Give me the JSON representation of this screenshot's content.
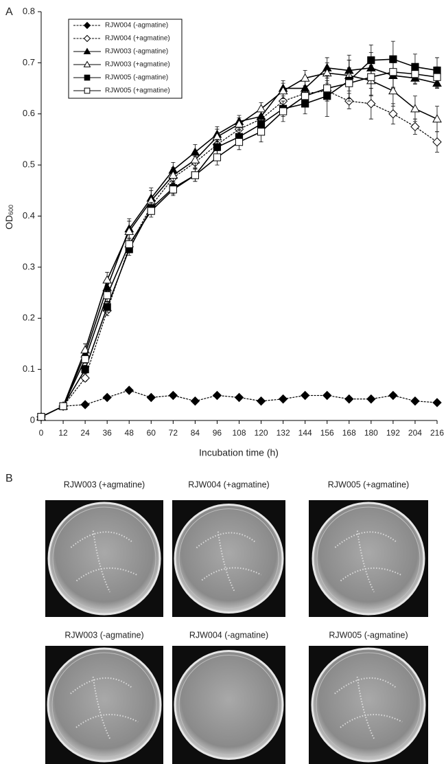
{
  "panel_labels": [
    "A",
    "B"
  ],
  "chart_data": {
    "type": "line",
    "xlabel": "Incubation time (h)",
    "ylabel": {
      "text": "OD",
      "subscript": "600"
    },
    "x": [
      0,
      12,
      24,
      36,
      48,
      60,
      72,
      84,
      96,
      108,
      120,
      132,
      144,
      156,
      168,
      180,
      192,
      204,
      216
    ],
    "xlim": [
      0,
      216
    ],
    "xticks": [
      0,
      12,
      24,
      36,
      48,
      60,
      72,
      84,
      96,
      108,
      120,
      132,
      144,
      156,
      168,
      180,
      192,
      204,
      216
    ],
    "ylim": [
      0,
      0.8
    ],
    "yticks": [
      0,
      0.1,
      0.2,
      0.3,
      0.4,
      0.5,
      0.6,
      0.7,
      0.8
    ],
    "series": [
      {
        "name": "RJW004 (-agmatine)",
        "color": "#000000",
        "marker": "diamond",
        "filled": true,
        "dashed": true,
        "values": [
          0.007,
          0.028,
          0.031,
          0.045,
          0.059,
          0.045,
          0.049,
          0.038,
          0.049,
          0.045,
          0.038,
          0.042,
          0.049,
          0.049,
          0.042,
          0.042,
          0.049,
          0.038,
          0.035
        ],
        "errors": [
          0.002,
          0.002,
          0.004,
          0.004,
          0.004,
          0.004,
          0.004,
          0.004,
          0.004,
          0.004,
          0.004,
          0.004,
          0.004,
          0.004,
          0.004,
          0.004,
          0.004,
          0.004,
          0.004
        ]
      },
      {
        "name": "RJW004 (+agmatine)",
        "color": "#000000",
        "marker": "diamond",
        "filled": false,
        "dashed": true,
        "values": [
          0.007,
          0.028,
          0.083,
          0.215,
          0.34,
          0.42,
          0.475,
          0.505,
          0.54,
          0.57,
          0.59,
          0.625,
          0.64,
          0.645,
          0.625,
          0.62,
          0.6,
          0.575,
          0.545
        ],
        "errors": [
          0.002,
          0.002,
          0.006,
          0.01,
          0.012,
          0.012,
          0.012,
          0.012,
          0.012,
          0.012,
          0.015,
          0.015,
          0.015,
          0.02,
          0.015,
          0.03,
          0.02,
          0.015,
          0.02
        ]
      },
      {
        "name": "RJW003 (-agmatine)",
        "color": "#000000",
        "marker": "triangle",
        "filled": true,
        "dashed": false,
        "values": [
          0.007,
          0.028,
          0.13,
          0.26,
          0.375,
          0.435,
          0.49,
          0.525,
          0.56,
          0.585,
          0.595,
          0.65,
          0.65,
          0.69,
          0.685,
          0.69,
          0.675,
          0.67,
          0.66
        ],
        "errors": [
          0.002,
          0.002,
          0.01,
          0.015,
          0.02,
          0.02,
          0.015,
          0.015,
          0.015,
          0.012,
          0.012,
          0.015,
          0.015,
          0.02,
          0.03,
          0.03,
          0.025,
          0.01,
          0.01
        ]
      },
      {
        "name": "RJW003 (+agmatine)",
        "color": "#000000",
        "marker": "triangle",
        "filled": false,
        "dashed": false,
        "values": [
          0.007,
          0.028,
          0.138,
          0.275,
          0.37,
          0.43,
          0.48,
          0.51,
          0.555,
          0.58,
          0.61,
          0.645,
          0.67,
          0.68,
          0.675,
          0.665,
          0.645,
          0.61,
          0.59
        ],
        "errors": [
          0.002,
          0.002,
          0.012,
          0.015,
          0.02,
          0.02,
          0.015,
          0.015,
          0.015,
          0.012,
          0.012,
          0.015,
          0.015,
          0.02,
          0.03,
          0.03,
          0.03,
          0.025,
          0.025
        ]
      },
      {
        "name": "RJW005 (-agmatine)",
        "color": "#000000",
        "marker": "square",
        "filled": true,
        "dashed": false,
        "values": [
          0.007,
          0.028,
          0.1,
          0.222,
          0.335,
          0.415,
          0.455,
          0.48,
          0.535,
          0.555,
          0.58,
          0.61,
          0.62,
          0.635,
          0.665,
          0.705,
          0.707,
          0.692,
          0.685
        ],
        "errors": [
          0.002,
          0.002,
          0.008,
          0.01,
          0.012,
          0.012,
          0.012,
          0.012,
          0.015,
          0.015,
          0.015,
          0.015,
          0.02,
          0.04,
          0.04,
          0.03,
          0.035,
          0.025,
          0.025
        ]
      },
      {
        "name": "RJW005 (+agmatine)",
        "color": "#000000",
        "marker": "square",
        "filled": false,
        "dashed": false,
        "values": [
          0.007,
          0.028,
          0.12,
          0.245,
          0.345,
          0.41,
          0.452,
          0.48,
          0.515,
          0.545,
          0.565,
          0.605,
          0.635,
          0.65,
          0.66,
          0.672,
          0.682,
          0.678,
          0.672
        ],
        "errors": [
          0.002,
          0.002,
          0.008,
          0.012,
          0.012,
          0.012,
          0.012,
          0.012,
          0.015,
          0.015,
          0.02,
          0.02,
          0.02,
          0.025,
          0.03,
          0.035,
          0.03,
          0.02,
          0.02
        ]
      }
    ]
  },
  "plates": [
    {
      "label": "RJW003 (+agmatine)"
    },
    {
      "label": "RJW004 (+agmatine)"
    },
    {
      "label": "RJW005 (+agmatine)"
    },
    {
      "label": "RJW003 (-agmatine)"
    },
    {
      "label": "RJW004 (-agmatine)"
    },
    {
      "label": "RJW005 (-agmatine)"
    }
  ]
}
